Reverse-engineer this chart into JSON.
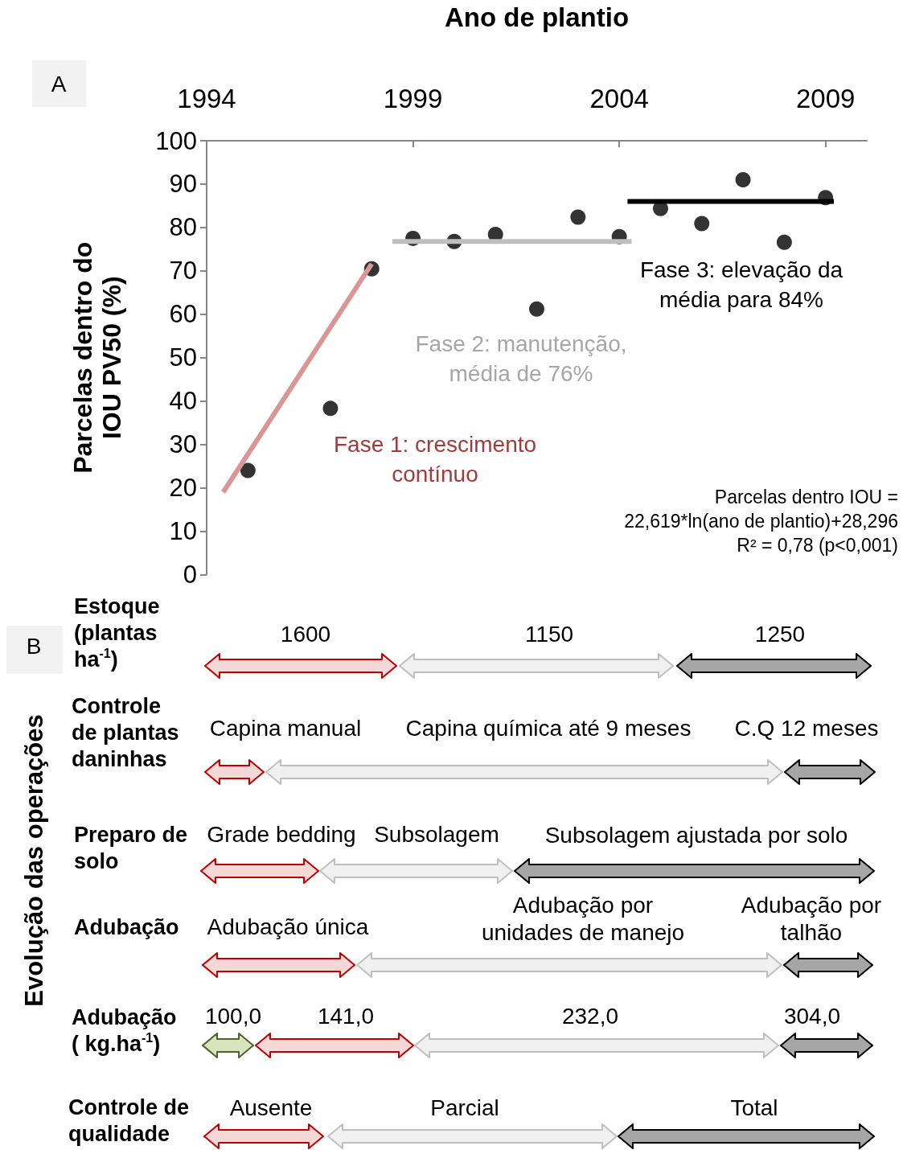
{
  "chart_data": [
    {
      "type": "scatter",
      "xlabel": "Ano de plantio",
      "ylabel": "Parcelas dentro do\nIOU PV50 (%)",
      "x": [
        1995,
        1997,
        1998,
        1999,
        2000,
        2001,
        2002,
        2003,
        2004,
        2005,
        2006,
        2007,
        2008,
        2009
      ],
      "xlim": [
        1994,
        2010
      ],
      "xticks": [
        1994,
        1999,
        2004,
        2009
      ],
      "ylim": [
        0,
        100
      ],
      "yticks": [
        0,
        10,
        20,
        30,
        40,
        50,
        60,
        70,
        80,
        90,
        100
      ],
      "grid": false,
      "series": [
        {
          "marker": "circle",
          "color": "#000000",
          "values": [
            24,
            38.3,
            70.5,
            77.5,
            76.8,
            78.4,
            61.2,
            82.4,
            77.9,
            84.4,
            80.9,
            91,
            76.6,
            86.9
          ]
        },
        {
          "type": "line",
          "color": "#d99694",
          "x": [
            1994.4,
            1998
          ],
          "values": [
            19,
            71.6
          ]
        },
        {
          "type": "line",
          "color": "#bfbfbf",
          "x": [
            1998.5,
            2004.3
          ],
          "values": [
            76.8,
            76.8
          ]
        },
        {
          "type": "line",
          "color": "#000000",
          "x": [
            2004.2,
            2009.2
          ],
          "values": [
            86,
            86
          ]
        }
      ],
      "annotations": [
        "A",
        "Fase 1: crescimento\ncontínuo",
        "Fase 2: manutenção,\nmédia de 76%",
        "Fase 3: elevação da\nmédia para 84%",
        "Parcelas dentro IOU =\n22,619*ln(ano de plantio)+28,296\nR² = 0,78 (p<0,001)"
      ]
    },
    {
      "type": "other",
      "ylabel": "Evolução das operações",
      "annotations": [
        "B",
        "Estoque\n(plantas\nha$^{-1}$)",
        "1600",
        "1150",
        "1250",
        "Controle\nde plantas\ndaninhas",
        "Capina manual",
        "Capina química até 9 meses",
        "C.Q 12 meses",
        "Preparo de\nsolo",
        "Grade bedding",
        "Subsolagem",
        "Subsolagem ajustada por solo",
        "Adubação",
        "Adubação única",
        "Adubação por\nunidades de manejo",
        "Adubação por\ntalhão",
        "Adubação\n( kg.ha$^{-1}$)",
        "100,0",
        "141,0",
        "232,0",
        "304,0",
        "Controle de\nqualidade",
        "Ausente",
        "Parcial",
        "Total"
      ]
    }
  ]
}
